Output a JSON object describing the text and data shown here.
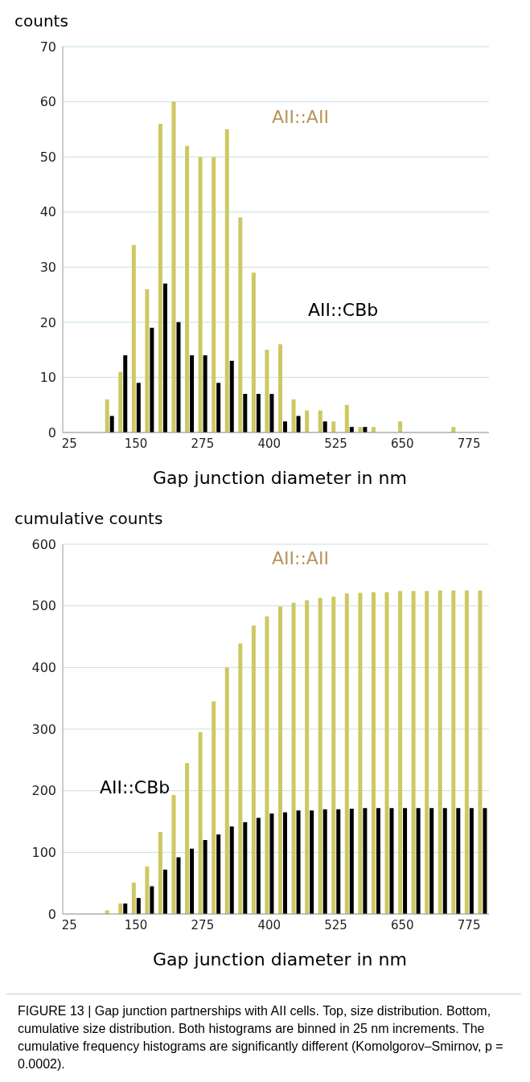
{
  "chart_data": [
    {
      "type": "bar",
      "ylabel": "counts",
      "xlabel": "Gap junction diameter in nm",
      "categories": [
        "25",
        null,
        null,
        null,
        null,
        "150",
        null,
        null,
        null,
        null,
        "275",
        null,
        null,
        null,
        null,
        "400",
        null,
        null,
        null,
        null,
        "525",
        null,
        null,
        null,
        null,
        "650",
        null,
        null,
        null,
        null,
        "775",
        null
      ],
      "series": [
        {
          "name": "AII::AII",
          "color": "#cdc862",
          "values": [
            0,
            0,
            0,
            6,
            11,
            34,
            26,
            56,
            60,
            52,
            50,
            50,
            55,
            39,
            29,
            15,
            16,
            6,
            4,
            4,
            2,
            5,
            1,
            1,
            0,
            2,
            0,
            0,
            0,
            1,
            0,
            0
          ]
        },
        {
          "name": "AII::CBb",
          "color": "#000000",
          "values": [
            0,
            0,
            0,
            3,
            14,
            9,
            19,
            27,
            20,
            14,
            14,
            9,
            13,
            7,
            7,
            7,
            2,
            3,
            0,
            2,
            0,
            1,
            1,
            0,
            0,
            0,
            0,
            0,
            0,
            0,
            0,
            0
          ]
        }
      ],
      "ylim": [
        0,
        70
      ],
      "yticks": [
        0,
        10,
        20,
        30,
        40,
        50,
        60,
        70
      ],
      "grid": "y"
    },
    {
      "type": "bar",
      "ylabel": "cumulative counts",
      "xlabel": "Gap junction diameter in nm",
      "categories": [
        "25",
        null,
        null,
        null,
        null,
        "150",
        null,
        null,
        null,
        null,
        "275",
        null,
        null,
        null,
        null,
        "400",
        null,
        null,
        null,
        null,
        "525",
        null,
        null,
        null,
        null,
        "650",
        null,
        null,
        null,
        null,
        "775",
        null
      ],
      "series": [
        {
          "name": "AII::AII",
          "color": "#cdc862",
          "values": [
            0,
            0,
            0,
            6,
            17,
            51,
            77,
            133,
            193,
            245,
            295,
            345,
            400,
            439,
            468,
            483,
            499,
            505,
            509,
            513,
            515,
            520,
            521,
            522,
            522,
            524,
            524,
            524,
            525,
            525,
            525,
            525
          ]
        },
        {
          "name": "AII::CBb",
          "color": "#000000",
          "values": [
            0,
            0,
            0,
            null,
            17,
            26,
            45,
            72,
            92,
            106,
            120,
            129,
            142,
            149,
            156,
            163,
            165,
            168,
            168,
            170,
            170,
            171,
            172,
            172,
            172,
            172,
            172,
            172,
            172,
            172,
            172,
            172
          ]
        }
      ],
      "ylim": [
        0,
        600
      ],
      "yticks": [
        0,
        100,
        200,
        300,
        400,
        500,
        600
      ],
      "grid": "y",
      "annotations": [
        "FIGURE 13 | Gap junction partnerships with AII cells. Top, size distribution. Bottom, cumulative size distribution. Both histograms are binned in 25 nm increments. The cumulative frequency histograms are significantly different (Komolgorov–Smirnov, p = 0.0002)."
      ]
    }
  ]
}
